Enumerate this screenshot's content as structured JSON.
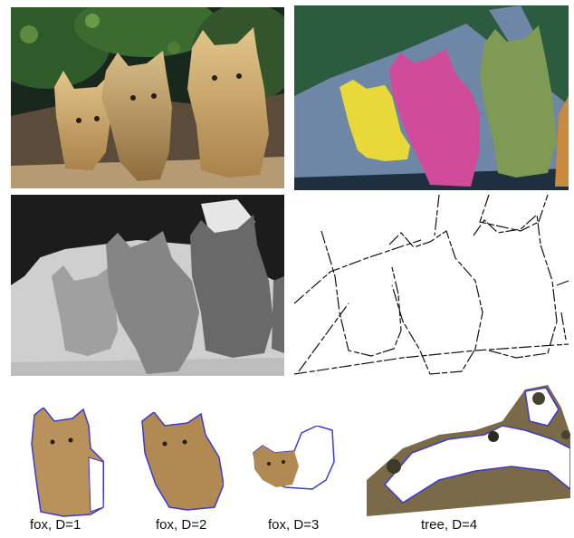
{
  "captions": [
    {
      "class_name": "fox",
      "depth_label": "D=1"
    },
    {
      "class_name": "fox",
      "depth_label": "D=2"
    },
    {
      "class_name": "fox",
      "depth_label": "D=3"
    },
    {
      "class_name": "tree",
      "depth_label": "D=4"
    }
  ],
  "segment_colors": {
    "fox_1": "#e9d83a",
    "fox_2": "#d04c9a",
    "fox_3": "#7e9a55",
    "tree": "#6f87a6",
    "foliage": "#2c5c40",
    "ground": "#1f2f3f",
    "outline": "#3b3bd0"
  },
  "depth_gray_levels": [
    "#1c1c1c",
    "#cfcfcf",
    "#a0a0a0",
    "#858585",
    "#696969",
    "#bdbdbd",
    "#e6e6e6"
  ]
}
